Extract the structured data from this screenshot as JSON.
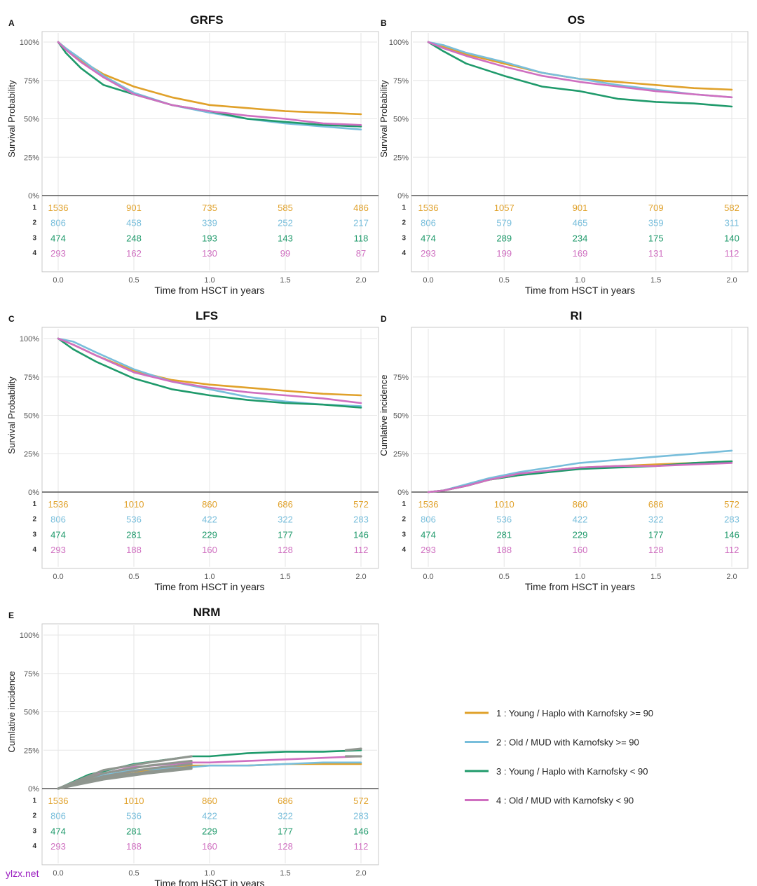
{
  "watermark": "ylzx.net",
  "colors": {
    "g1": "#e0a12a",
    "g2": "#78bedb",
    "g3": "#1f9a6b",
    "g4": "#cf6fc0",
    "gray": "#8f968f",
    "axis": "#444444",
    "grid": "#e6e6e6"
  },
  "legend": [
    {
      "id": "1",
      "label": "1 : Young / Haplo with Karnofsky >= 90"
    },
    {
      "id": "2",
      "label": "2 : Old / MUD with Karnofsky >= 90"
    },
    {
      "id": "3",
      "label": "3 : Young / Haplo with Karnofsky < 90"
    },
    {
      "id": "4",
      "label": "4 : Old / MUD with Karnofsky < 90"
    }
  ],
  "chart_data": [
    {
      "panel": "A",
      "title": "GRFS",
      "type": "line",
      "ylabel": "Survival Probability",
      "xlabel": "Time from HSCT in years",
      "xlim": [
        0,
        2
      ],
      "ylim": [
        0,
        100
      ],
      "xticks": [
        "0.0",
        "0.5",
        "1.0",
        "1.5",
        "2.0"
      ],
      "yticks": [
        "0%",
        "25%",
        "50%",
        "75%",
        "100%"
      ],
      "risk_x": [
        0,
        0.5,
        1.0,
        1.5,
        2.0
      ],
      "series": [
        {
          "name": "1",
          "x": [
            0,
            0.05,
            0.15,
            0.3,
            0.5,
            0.75,
            1.0,
            1.25,
            1.5,
            1.75,
            2.0
          ],
          "y": [
            100,
            96,
            88,
            79,
            71,
            64,
            59,
            57,
            55,
            54,
            53
          ],
          "risk": [
            1536,
            901,
            735,
            585,
            486
          ]
        },
        {
          "name": "2",
          "x": [
            0,
            0.05,
            0.15,
            0.3,
            0.5,
            0.75,
            1.0,
            1.25,
            1.5,
            1.75,
            2.0
          ],
          "y": [
            100,
            96,
            89,
            78,
            67,
            59,
            54,
            50,
            47,
            45,
            43
          ],
          "risk": [
            806,
            458,
            339,
            252,
            217
          ]
        },
        {
          "name": "3",
          "x": [
            0,
            0.05,
            0.15,
            0.3,
            0.5,
            0.75,
            1.0,
            1.25,
            1.5,
            1.75,
            2.0
          ],
          "y": [
            100,
            93,
            83,
            72,
            66,
            59,
            55,
            50,
            48,
            46,
            45
          ],
          "risk": [
            474,
            248,
            193,
            143,
            118
          ]
        },
        {
          "name": "4",
          "x": [
            0,
            0.05,
            0.15,
            0.3,
            0.5,
            0.75,
            1.0,
            1.25,
            1.5,
            1.75,
            2.0
          ],
          "y": [
            100,
            95,
            87,
            77,
            66,
            59,
            55,
            52,
            50,
            47,
            46
          ],
          "risk": [
            293,
            162,
            130,
            99,
            87
          ]
        }
      ]
    },
    {
      "panel": "B",
      "title": "OS",
      "type": "line",
      "ylabel": "Survival Probability",
      "xlabel": "Time from HSCT in years",
      "xlim": [
        0,
        2
      ],
      "ylim": [
        0,
        100
      ],
      "xticks": [
        "0.0",
        "0.5",
        "1.0",
        "1.5",
        "2.0"
      ],
      "yticks": [
        "0%",
        "25%",
        "50%",
        "75%",
        "100%"
      ],
      "risk_x": [
        0,
        0.5,
        1.0,
        1.5,
        2.0
      ],
      "series": [
        {
          "name": "1",
          "x": [
            0,
            0.1,
            0.25,
            0.5,
            0.75,
            1.0,
            1.25,
            1.5,
            1.75,
            2.0
          ],
          "y": [
            100,
            97,
            92,
            86,
            80,
            76,
            74,
            72,
            70,
            69
          ],
          "risk": [
            1536,
            1057,
            901,
            709,
            582
          ]
        },
        {
          "name": "2",
          "x": [
            0,
            0.1,
            0.25,
            0.5,
            0.75,
            1.0,
            1.25,
            1.5,
            1.75,
            2.0
          ],
          "y": [
            100,
            98,
            93,
            87,
            80,
            76,
            72,
            69,
            66,
            64
          ],
          "risk": [
            806,
            579,
            465,
            359,
            311
          ]
        },
        {
          "name": "3",
          "x": [
            0,
            0.1,
            0.25,
            0.5,
            0.75,
            1.0,
            1.25,
            1.5,
            1.75,
            2.0
          ],
          "y": [
            100,
            94,
            86,
            78,
            71,
            68,
            63,
            61,
            60,
            58
          ],
          "risk": [
            474,
            289,
            234,
            175,
            140
          ]
        },
        {
          "name": "4",
          "x": [
            0,
            0.1,
            0.25,
            0.5,
            0.75,
            1.0,
            1.25,
            1.5,
            1.75,
            2.0
          ],
          "y": [
            100,
            96,
            91,
            84,
            78,
            74,
            71,
            68,
            66,
            64
          ],
          "risk": [
            293,
            199,
            169,
            131,
            112
          ]
        }
      ]
    },
    {
      "panel": "C",
      "title": "LFS",
      "type": "line",
      "ylabel": "Survival Probability",
      "xlabel": "Time from HSCT in years",
      "xlim": [
        0,
        2
      ],
      "ylim": [
        0,
        100
      ],
      "xticks": [
        "0.0",
        "0.5",
        "1.0",
        "1.5",
        "2.0"
      ],
      "yticks": [
        "0%",
        "25%",
        "50%",
        "75%",
        "100%"
      ],
      "risk_x": [
        0,
        0.5,
        1.0,
        1.5,
        2.0
      ],
      "series": [
        {
          "name": "1",
          "x": [
            0,
            0.1,
            0.25,
            0.5,
            0.75,
            1.0,
            1.25,
            1.5,
            1.75,
            2.0
          ],
          "y": [
            100,
            96,
            89,
            79,
            73,
            70,
            68,
            66,
            64,
            63
          ],
          "risk": [
            1536,
            1010,
            860,
            686,
            572
          ]
        },
        {
          "name": "2",
          "x": [
            0,
            0.1,
            0.25,
            0.5,
            0.75,
            1.0,
            1.25,
            1.5,
            1.75,
            2.0
          ],
          "y": [
            100,
            98,
            91,
            80,
            72,
            67,
            62,
            59,
            57,
            56
          ],
          "risk": [
            806,
            536,
            422,
            322,
            283
          ]
        },
        {
          "name": "3",
          "x": [
            0,
            0.1,
            0.25,
            0.5,
            0.75,
            1.0,
            1.25,
            1.5,
            1.75,
            2.0
          ],
          "y": [
            100,
            93,
            85,
            74,
            67,
            63,
            60,
            58,
            57,
            55
          ],
          "risk": [
            474,
            281,
            229,
            177,
            146
          ]
        },
        {
          "name": "4",
          "x": [
            0,
            0.1,
            0.25,
            0.5,
            0.75,
            1.0,
            1.25,
            1.5,
            1.75,
            2.0
          ],
          "y": [
            100,
            96,
            89,
            78,
            72,
            68,
            65,
            63,
            61,
            58
          ],
          "risk": [
            293,
            188,
            160,
            128,
            112
          ]
        }
      ]
    },
    {
      "panel": "D",
      "title": "RI",
      "type": "line",
      "ylabel": "Cumlative incidence",
      "xlabel": "Time from HSCT in years",
      "xlim": [
        0,
        2
      ],
      "ylim": [
        0,
        100
      ],
      "xticks": [
        "0.0",
        "0.5",
        "1.0",
        "1.5",
        "2.0"
      ],
      "yticks": [
        "0%",
        "25%",
        "50%",
        "75%"
      ],
      "risk_x": [
        0,
        0.5,
        1.0,
        1.5,
        2.0
      ],
      "series": [
        {
          "name": "1",
          "x": [
            0,
            0.1,
            0.25,
            0.4,
            0.6,
            0.8,
            1.0,
            1.25,
            1.5,
            1.75,
            2.0
          ],
          "y": [
            0,
            1,
            4,
            8,
            11,
            14,
            16,
            17,
            18,
            19,
            20
          ],
          "risk": [
            1536,
            1010,
            860,
            686,
            572
          ]
        },
        {
          "name": "2",
          "x": [
            0,
            0.1,
            0.25,
            0.4,
            0.6,
            0.8,
            1.0,
            1.25,
            1.5,
            1.75,
            2.0
          ],
          "y": [
            0,
            1,
            5,
            9,
            13,
            16,
            19,
            21,
            23,
            25,
            27
          ],
          "risk": [
            806,
            536,
            422,
            322,
            283
          ]
        },
        {
          "name": "3",
          "x": [
            0,
            0.1,
            0.25,
            0.4,
            0.6,
            0.8,
            1.0,
            1.25,
            1.5,
            1.75,
            2.0
          ],
          "y": [
            0,
            1,
            4,
            8,
            11,
            13,
            15,
            16,
            17,
            19,
            20
          ],
          "risk": [
            474,
            281,
            229,
            177,
            146
          ]
        },
        {
          "name": "4",
          "x": [
            0,
            0.1,
            0.25,
            0.4,
            0.6,
            0.8,
            1.0,
            1.25,
            1.5,
            1.75,
            2.0
          ],
          "y": [
            0,
            1,
            4,
            8,
            12,
            14,
            16,
            17,
            17,
            18,
            19
          ],
          "risk": [
            293,
            188,
            160,
            128,
            112
          ]
        }
      ]
    },
    {
      "panel": "E",
      "title": "NRM",
      "type": "line",
      "ylabel": "Cumlative incidence",
      "xlabel": "Time from HSCT in years",
      "xlim": [
        0,
        2
      ],
      "ylim": [
        0,
        100
      ],
      "xticks": [
        "0.0",
        "0.5",
        "1.0",
        "1.5",
        "2.0"
      ],
      "yticks": [
        "0%",
        "25%",
        "50%",
        "75%",
        "100%"
      ],
      "risk_x": [
        0,
        0.5,
        1.0,
        1.5,
        2.0
      ],
      "series": [
        {
          "name": "1",
          "x": [
            0,
            0.2,
            0.5,
            0.88,
            1.0,
            1.25,
            1.5,
            1.75,
            2.0
          ],
          "y": [
            0,
            6,
            11,
            15,
            15,
            15,
            16,
            16,
            16
          ],
          "risk": [
            1536,
            1010,
            860,
            686,
            572
          ]
        },
        {
          "name": "2",
          "x": [
            0,
            0.2,
            0.5,
            0.88,
            1.0,
            1.25,
            1.5,
            1.75,
            2.0
          ],
          "y": [
            0,
            7,
            12,
            14,
            15,
            15,
            16,
            17,
            17
          ],
          "risk": [
            806,
            536,
            422,
            322,
            283
          ]
        },
        {
          "name": "3",
          "x": [
            0,
            0.2,
            0.5,
            0.88,
            1.0,
            1.25,
            1.5,
            1.75,
            2.0
          ],
          "y": [
            0,
            9,
            16,
            21,
            21,
            23,
            24,
            24,
            25
          ],
          "risk": [
            474,
            281,
            229,
            177,
            146
          ]
        },
        {
          "name": "4",
          "x": [
            0,
            0.2,
            0.5,
            0.88,
            1.0,
            1.25,
            1.5,
            1.75,
            2.0
          ],
          "y": [
            0,
            8,
            14,
            17,
            17,
            18,
            19,
            20,
            21
          ],
          "risk": [
            293,
            188,
            160,
            128,
            112
          ]
        }
      ],
      "overlay_gray": [
        {
          "x": [
            0,
            0.3,
            0.6,
            0.88
          ],
          "y": [
            0,
            12,
            17,
            21
          ]
        },
        {
          "x": [
            0,
            0.3,
            0.6,
            0.88
          ],
          "y": [
            0,
            10,
            15,
            18
          ]
        },
        {
          "x": [
            0,
            0.3,
            0.6,
            0.88
          ],
          "y": [
            0,
            8,
            13,
            16
          ]
        },
        {
          "x": [
            0,
            0.3,
            0.6,
            0.88
          ],
          "y": [
            0,
            7,
            11,
            14
          ]
        },
        {
          "x": [
            0,
            0.3,
            0.6,
            0.88
          ],
          "y": [
            0,
            6,
            10,
            13
          ]
        },
        {
          "x": [
            1.9,
            2.0
          ],
          "y": [
            21,
            21
          ]
        },
        {
          "x": [
            1.9,
            2.0
          ],
          "y": [
            25,
            26
          ]
        }
      ]
    }
  ]
}
